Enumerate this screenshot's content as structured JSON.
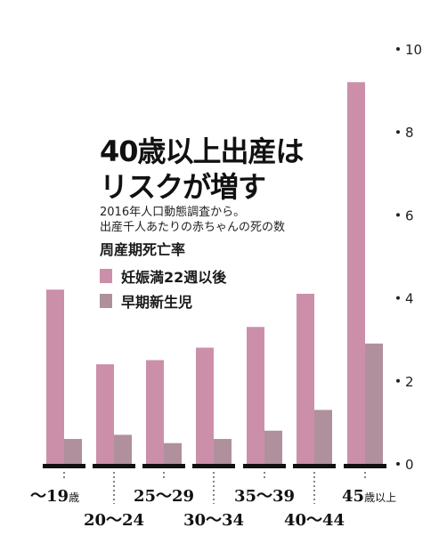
{
  "chart_data": {
    "type": "bar",
    "title_lines": [
      "40歳以上出産は",
      "リスクが増す"
    ],
    "subtitle_lines": [
      "2016年人口動態調査から。",
      "出産千人あたりの赤ちゃんの死の数"
    ],
    "legend_title": "周産期死亡率",
    "categories": [
      {
        "main": "〜19",
        "suffix": "歳"
      },
      {
        "main": "20〜24",
        "suffix": ""
      },
      {
        "main": "25〜29",
        "suffix": ""
      },
      {
        "main": "30〜34",
        "suffix": ""
      },
      {
        "main": "35〜39",
        "suffix": ""
      },
      {
        "main": "40〜44",
        "suffix": ""
      },
      {
        "main": "45",
        "suffix": "歳以上"
      }
    ],
    "series": [
      {
        "name": "妊娠満22週以後",
        "color": "#cc8fa9",
        "values": [
          4.2,
          2.4,
          2.5,
          2.8,
          3.3,
          4.1,
          9.2
        ]
      },
      {
        "name": "早期新生児",
        "color": "#b0909c",
        "values": [
          0.6,
          0.7,
          0.5,
          0.6,
          0.8,
          1.3,
          2.9
        ]
      }
    ],
    "yticks": [
      0,
      2,
      4,
      6,
      8,
      10
    ],
    "ylim": [
      0,
      10
    ],
    "legend_position": "left-middle",
    "grid": false
  }
}
